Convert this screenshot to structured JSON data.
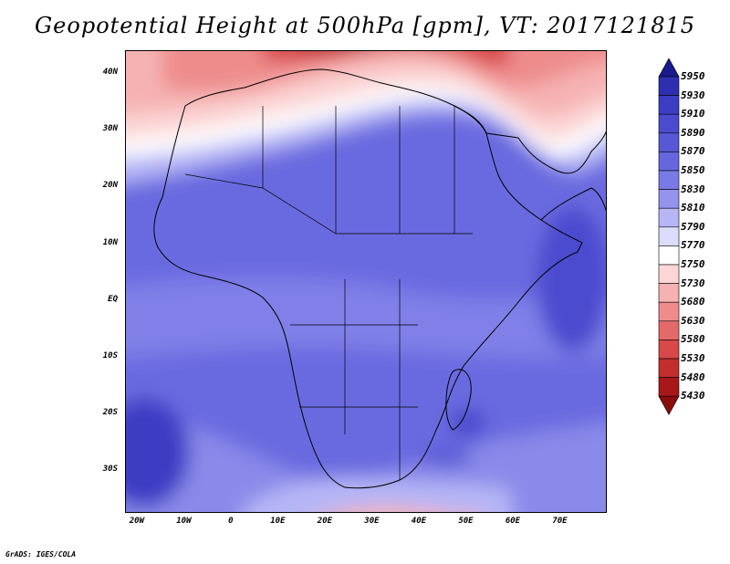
{
  "header": {
    "title": "Geopotential Height at 500hPa [gpm], VT: 2017121815"
  },
  "axes": {
    "lat_labels": [
      "40N",
      "30N",
      "20N",
      "10N",
      "EQ",
      "10S",
      "20S",
      "30S"
    ],
    "lat_values": [
      40,
      30,
      20,
      10,
      0,
      -10,
      -20,
      -30
    ],
    "lon_labels": [
      "20W",
      "10W",
      "0",
      "10E",
      "20E",
      "30E",
      "40E",
      "50E",
      "60E",
      "70E"
    ],
    "lon_values": [
      -20,
      -10,
      0,
      10,
      20,
      30,
      40,
      50,
      60,
      70
    ],
    "lon_range": [
      -22.5,
      80
    ],
    "lat_range": [
      -37.5,
      44
    ]
  },
  "colorbar": {
    "labels": [
      "5950",
      "5930",
      "5910",
      "5890",
      "5870",
      "5850",
      "5830",
      "5810",
      "5790",
      "5770",
      "5750",
      "5730",
      "5680",
      "5630",
      "5580",
      "5530",
      "5480",
      "5430"
    ],
    "colors": [
      "#1a1a8c",
      "#2e2eb0",
      "#3d3dc4",
      "#4b4bcf",
      "#5858d6",
      "#6666de",
      "#7a7ae6",
      "#9494ee",
      "#b6b6f6",
      "#dcdcfc",
      "#ffffff",
      "#fcd6d6",
      "#f6b2b2",
      "#ee8c8c",
      "#e46a6a",
      "#d84848",
      "#c42e2e",
      "#a81818",
      "#8c0c0c"
    ]
  },
  "footer": {
    "credit": "GrADS: IGES/COLA"
  }
}
